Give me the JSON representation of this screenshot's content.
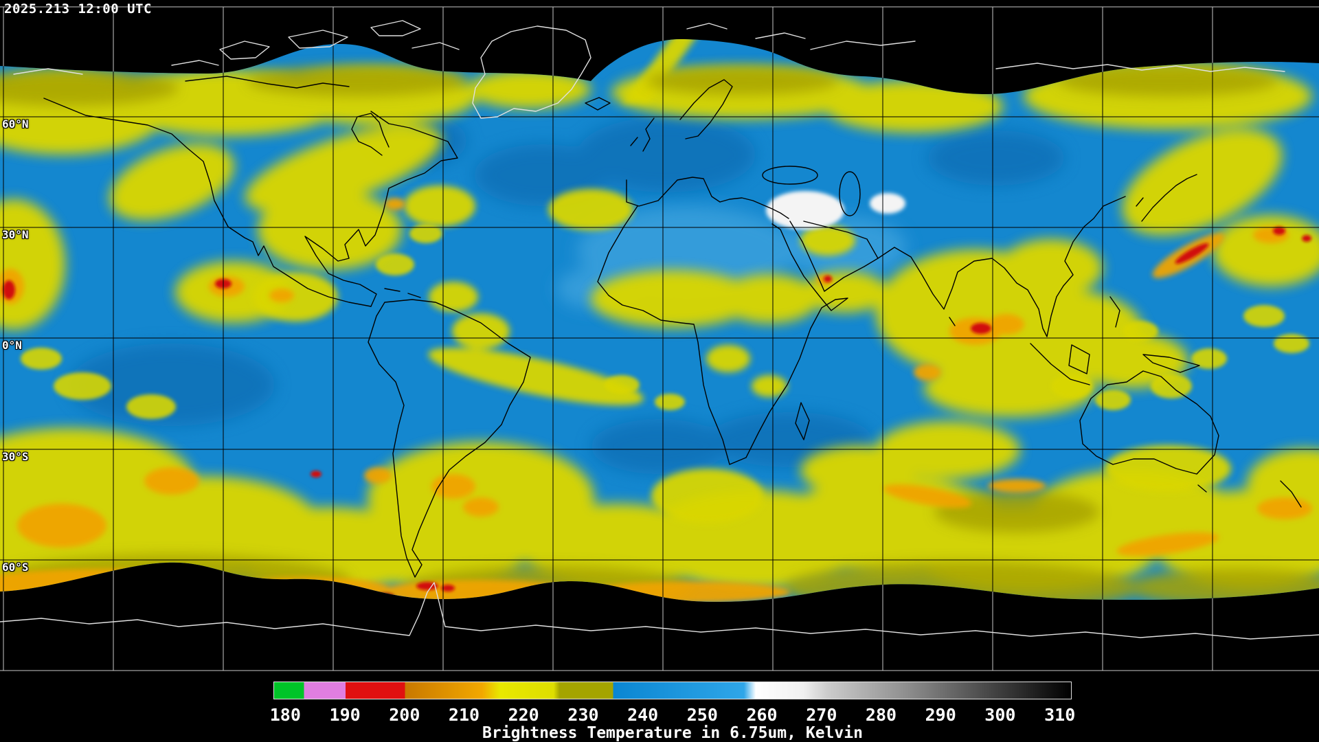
{
  "header": {
    "timestamp": "2025.213 12:00 UTC"
  },
  "map": {
    "lat_labels": [
      "60°N",
      "30°N",
      "0°N",
      "30°S",
      "60°S"
    ],
    "palette": {
      "background": "#000000",
      "dry_air_blue": "#1487cf",
      "moist_cold_yellow": "#d9d600",
      "colder_olive": "#a7a300",
      "cold_orange": "#f0a400",
      "very_cold_red": "#d01010",
      "warm_surface_white": "#f4f4f4"
    }
  },
  "colorbar": {
    "min": 178,
    "max": 312,
    "ticks": [
      180,
      190,
      200,
      210,
      220,
      230,
      240,
      250,
      260,
      270,
      280,
      290,
      300,
      310
    ],
    "stops": [
      [
        178,
        "#00c428"
      ],
      [
        183,
        "#00c428"
      ],
      [
        183,
        "#e07ee0"
      ],
      [
        190,
        "#e07ee0"
      ],
      [
        190,
        "#e01010"
      ],
      [
        200,
        "#e01010"
      ],
      [
        200,
        "#c87800"
      ],
      [
        213,
        "#f2a800"
      ],
      [
        216,
        "#e8e800"
      ],
      [
        225,
        "#dede00"
      ],
      [
        226,
        "#a4a400"
      ],
      [
        235,
        "#a4a400"
      ],
      [
        235,
        "#0a86d2"
      ],
      [
        257,
        "#2fa6e8"
      ],
      [
        259,
        "#ffffff"
      ],
      [
        267,
        "#f0f0f0"
      ],
      [
        271,
        "#cccccc"
      ],
      [
        284,
        "#909090"
      ],
      [
        298,
        "#484848"
      ],
      [
        312,
        "#000000"
      ]
    ],
    "caption": "Brightness Temperature in 6.75um, Kelvin"
  }
}
